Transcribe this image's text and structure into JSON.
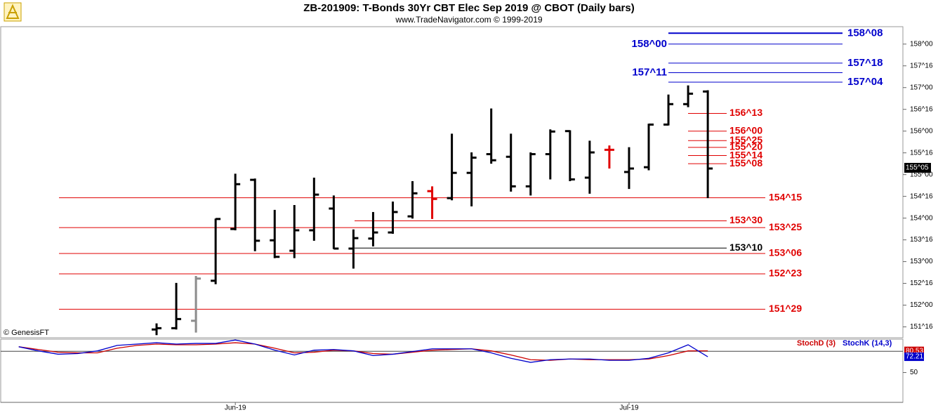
{
  "chart_data": {
    "type": "ohlc",
    "title": "ZB-201909:  T-Bonds 30Yr CBT Elec Sep 2019 @ CBOT  (Daily bars)",
    "subtitle": "www.TradeNavigator.com © 1999-2019",
    "source": "© GenesisFT",
    "ylim": [
      151.25,
      158.4
    ],
    "yticks": [
      {
        "value": 158,
        "label": "158^00"
      },
      {
        "value": 157.5,
        "label": "157^16"
      },
      {
        "value": 157,
        "label": "157^00"
      },
      {
        "value": 156.5,
        "label": "156^16"
      },
      {
        "value": 156,
        "label": "156^00"
      },
      {
        "value": 155.5,
        "label": "155^16"
      },
      {
        "value": 155,
        "label": "155^00"
      },
      {
        "value": 154.5,
        "label": "154^16"
      },
      {
        "value": 154,
        "label": "154^00"
      },
      {
        "value": 153.5,
        "label": "153^16"
      },
      {
        "value": 153,
        "label": "153^00"
      },
      {
        "value": 152.5,
        "label": "152^16"
      },
      {
        "value": 152,
        "label": "152^00"
      },
      {
        "value": 151.5,
        "label": "151^16"
      }
    ],
    "xticks": [
      {
        "value": 4,
        "label": "Jun-19"
      },
      {
        "value": 24,
        "label": "Jul-19"
      }
    ],
    "open": [
      151.44,
      151.47,
      151.64,
      152.56,
      153.75,
      154.88,
      153.49,
      153.25,
      153.72,
      154.22,
      153.3,
      153.53,
      153.67,
      154.04,
      154.62,
      154.46,
      155.04,
      155.47,
      155.41,
      154.73,
      155.47,
      156.0,
      154.93,
      155.57,
      155.06,
      155.17,
      156.15,
      156.62,
      156.91
    ],
    "high": [
      151.58,
      152.51,
      152.67,
      153.99,
      155.02,
      154.91,
      154.19,
      154.3,
      154.93,
      154.52,
      153.74,
      154.14,
      154.38,
      154.85,
      154.73,
      155.94,
      155.51,
      156.52,
      155.94,
      155.51,
      156.04,
      156.02,
      155.78,
      155.67,
      155.63,
      156.17,
      156.84,
      157.05,
      156.94
    ],
    "low": [
      151.31,
      151.44,
      151.37,
      152.48,
      153.72,
      153.24,
      153.08,
      153.08,
      153.48,
      153.29,
      152.84,
      153.35,
      153.64,
      153.99,
      153.98,
      154.41,
      154.27,
      155.25,
      154.61,
      154.52,
      154.89,
      154.85,
      154.56,
      155.14,
      154.67,
      155.1,
      156.13,
      156.55,
      154.46
    ],
    "close": [
      151.47,
      151.68,
      152.61,
      153.98,
      154.78,
      153.48,
      153.11,
      153.72,
      154.54,
      153.3,
      153.54,
      153.67,
      154.14,
      154.57,
      154.44,
      155.04,
      155.39,
      155.33,
      154.73,
      155.47,
      155.99,
      154.89,
      155.51,
      155.57,
      155.14,
      156.15,
      156.62,
      156.86,
      155.14
    ],
    "bar_colors": [
      "#000000",
      "#000000",
      "#8c8c8c",
      "#000000",
      "#000000",
      "#000000",
      "#000000",
      "#000000",
      "#000000",
      "#000000",
      "#000000",
      "#000000",
      "#000000",
      "#000000",
      "#e00000",
      "#000000",
      "#000000",
      "#000000",
      "#000000",
      "#000000",
      "#000000",
      "#000000",
      "#000000",
      "#e00000",
      "#000000",
      "#000000",
      "#000000",
      "#000000",
      "#000000"
    ],
    "last_price": {
      "value": 155.15625,
      "label": "155^05"
    },
    "levels": [
      {
        "label": "158^08",
        "value": 158.25,
        "color": "#0000cc"
      },
      {
        "label": "158^00",
        "value": 158,
        "color": "#0000cc"
      },
      {
        "label": "157^18",
        "value": 157.5625,
        "color": "#0000cc"
      },
      {
        "label": "157^11",
        "value": 157.34375,
        "color": "#0000cc"
      },
      {
        "label": "157^04",
        "value": 157.125,
        "color": "#0000cc"
      },
      {
        "label": "156^13",
        "value": 156.40625,
        "color": "#e00000"
      },
      {
        "label": "156^00",
        "value": 156,
        "color": "#e00000"
      },
      {
        "label": "155^25",
        "value": 155.78125,
        "color": "#e00000"
      },
      {
        "label": "155^20",
        "value": 155.625,
        "color": "#e00000"
      },
      {
        "label": "155^14",
        "value": 155.4375,
        "color": "#e00000"
      },
      {
        "label": "155^08",
        "value": 155.25,
        "color": "#e00000"
      },
      {
        "label": "154^15",
        "value": 154.46875,
        "color": "#e00000"
      },
      {
        "label": "153^30",
        "value": 153.9375,
        "color": "#e00000"
      },
      {
        "label": "153^25",
        "value": 153.78125,
        "color": "#e00000"
      },
      {
        "label": "153^10",
        "value": 153.3125,
        "color": "#000000"
      },
      {
        "label": "153^06",
        "value": 153.1875,
        "color": "#e00000"
      },
      {
        "label": "152^23",
        "value": 152.71875,
        "color": "#e00000"
      },
      {
        "label": "151^29",
        "value": 151.90625,
        "color": "#e00000"
      }
    ],
    "stochastic": {
      "type": "line",
      "ylim": [
        8,
        97
      ],
      "yticks": [
        50
      ],
      "reference": 80,
      "series": [
        {
          "name": "StochD (3)",
          "color": "#cc0000",
          "values": [
            86.3,
            82.4,
            78.6,
            77.7,
            77.7,
            84.3,
            88.2,
            90.1,
            89.1,
            89.1,
            90.1,
            92.0,
            90.1,
            84.3,
            77.7,
            78.6,
            81.5,
            80.5,
            76.7,
            75.8,
            78.6,
            81.5,
            82.4,
            83.4,
            80.5,
            74.8,
            68.1,
            67.2,
            69.1,
            68.1,
            68.1,
            68.1,
            69.1,
            73.9,
            80.5,
            80.53
          ]
        },
        {
          "name": "StochK (14,3)",
          "color": "#0000cc",
          "values": [
            86.3,
            80.5,
            75.8,
            76.7,
            80.5,
            88.2,
            90.1,
            92.0,
            90.1,
            91.0,
            91.0,
            95.8,
            90.1,
            81.5,
            74.8,
            81.5,
            82.4,
            80.5,
            73.9,
            75.8,
            79.6,
            83.4,
            83.4,
            83.4,
            77.7,
            70.0,
            64.3,
            68.1,
            69.1,
            69.1,
            67.2,
            67.2,
            70.0,
            77.7,
            89.1,
            72.21
          ]
        }
      ]
    }
  }
}
